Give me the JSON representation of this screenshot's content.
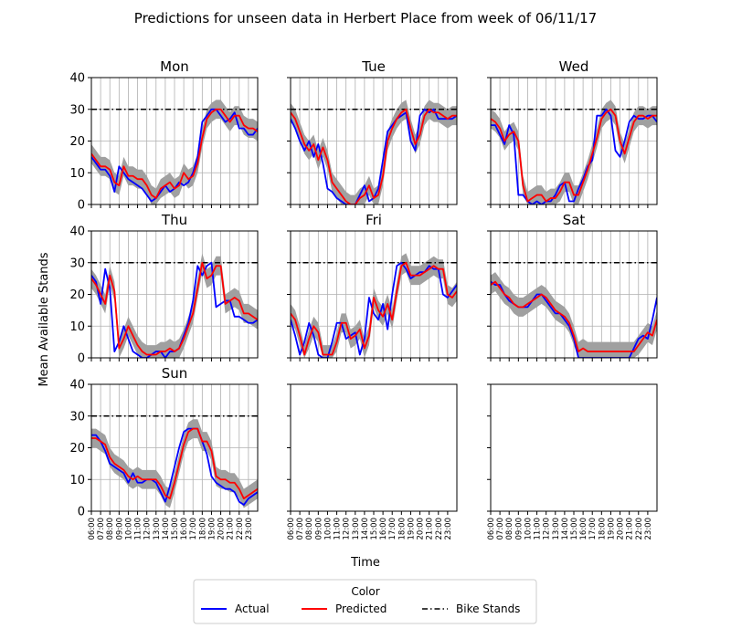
{
  "figure": {
    "title": "Predictions for unseen data in Herbert Place from week of 06/11/17",
    "xlabel": "Time",
    "ylabel": "Mean Available Stands"
  },
  "legend": {
    "title": "Color",
    "items": [
      {
        "label": "Actual",
        "color": "#0000ff",
        "style": "solid"
      },
      {
        "label": "Predicted",
        "color": "#ff0000",
        "style": "solid"
      },
      {
        "label": "Bike Stands",
        "color": "#000000",
        "style": "dashdot"
      }
    ]
  },
  "colors": {
    "band": "#a0a0a0",
    "grid": "#b0b0b0",
    "actual": "#0000ff",
    "predicted": "#ff0000",
    "stands": "#000000"
  },
  "chart_data": {
    "type": "line",
    "x_ticks": [
      "06:00",
      "07:00",
      "08:00",
      "09:00",
      "10:00",
      "11:00",
      "12:00",
      "13:00",
      "14:00",
      "15:00",
      "16:00",
      "17:00",
      "18:00",
      "19:00",
      "20:00",
      "21:00",
      "22:00",
      "23:00"
    ],
    "xlim": [
      6,
      24
    ],
    "ylim": [
      0,
      40
    ],
    "y_ticks": [
      0,
      10,
      20,
      30,
      40
    ],
    "bike_stands": 30,
    "band_halfwidth": 3,
    "grid": true,
    "legend_position": "bottom-center",
    "panels": [
      {
        "title": "Mon",
        "x": [
          6,
          6.5,
          7,
          7.5,
          8,
          8.5,
          9,
          9.5,
          10,
          10.5,
          11,
          11.5,
          12,
          12.5,
          13,
          13.5,
          14,
          14.5,
          15,
          15.5,
          16,
          16.5,
          17,
          17.5,
          18,
          18.5,
          19,
          19.5,
          20,
          20.5,
          21,
          21.5,
          22,
          22.5,
          23,
          23.5,
          24
        ],
        "actual": [
          15,
          13,
          11,
          11,
          9,
          4,
          12,
          10,
          8,
          7,
          6,
          5,
          3,
          1,
          2,
          4,
          6,
          4,
          5,
          7,
          6,
          7,
          10,
          15,
          26,
          28,
          30,
          30,
          28,
          26,
          27,
          29,
          24,
          24,
          22,
          22,
          24
        ],
        "predicted": [
          16,
          14,
          12,
          12,
          11,
          7,
          6,
          12,
          9,
          9,
          8,
          8,
          6,
          3,
          2,
          5,
          6,
          7,
          5,
          6,
          10,
          8,
          9,
          13,
          21,
          27,
          29,
          30,
          30,
          28,
          26,
          28,
          28,
          25,
          24,
          24,
          23
        ]
      },
      {
        "title": "Tue",
        "x": [
          6,
          6.5,
          7,
          7.5,
          8,
          8.5,
          9,
          9.5,
          10,
          10.5,
          11,
          11.5,
          12,
          12.5,
          13,
          13.5,
          14,
          14.5,
          15,
          15.5,
          16,
          16.5,
          17,
          17.5,
          18,
          18.5,
          19,
          19.5,
          20,
          20.5,
          21,
          21.5,
          22,
          22.5,
          23,
          23.5,
          24
        ],
        "actual": [
          27,
          24,
          20,
          17,
          20,
          15,
          19,
          13,
          5,
          4,
          2,
          1,
          0,
          0,
          0,
          3,
          6,
          1,
          2,
          5,
          14,
          23,
          25,
          27,
          28,
          29,
          20,
          17,
          28,
          30,
          29,
          30,
          27,
          27,
          27,
          27,
          28
        ],
        "predicted": [
          29,
          27,
          23,
          19,
          17,
          19,
          14,
          18,
          14,
          7,
          5,
          3,
          1,
          0,
          0,
          2,
          3,
          6,
          2,
          3,
          9,
          20,
          24,
          27,
          29,
          30,
          24,
          19,
          22,
          28,
          30,
          29,
          29,
          28,
          27,
          28,
          28
        ]
      },
      {
        "title": "Wed",
        "x": [
          6,
          6.5,
          7,
          7.5,
          8,
          8.5,
          9,
          9.5,
          10,
          10.5,
          11,
          11.5,
          12,
          12.5,
          13,
          13.5,
          14,
          14.5,
          15,
          15.5,
          16,
          16.5,
          17,
          17.5,
          18,
          18.5,
          19,
          19.5,
          20,
          20.5,
          21,
          21.5,
          22,
          22.5,
          23,
          23.5,
          24
        ],
        "actual": [
          25,
          25,
          22,
          19,
          25,
          22,
          3,
          3,
          1,
          0,
          1,
          0,
          1,
          1,
          3,
          6,
          7,
          1,
          1,
          5,
          8,
          12,
          14,
          28,
          28,
          30,
          28,
          17,
          15,
          20,
          26,
          28,
          27,
          27,
          28,
          28,
          26
        ],
        "predicted": [
          27,
          26,
          24,
          20,
          22,
          23,
          20,
          6,
          1,
          2,
          3,
          3,
          1,
          2,
          2,
          4,
          7,
          7,
          3,
          3,
          7,
          11,
          16,
          21,
          27,
          29,
          30,
          28,
          20,
          16,
          21,
          26,
          28,
          28,
          27,
          28,
          28
        ]
      },
      {
        "title": "Thu",
        "x": [
          6,
          6.5,
          7,
          7.5,
          8,
          8.5,
          9,
          9.5,
          10,
          10.5,
          11,
          11.5,
          12,
          12.5,
          13,
          13.5,
          14,
          14.5,
          15,
          15.5,
          16,
          16.5,
          17,
          17.5,
          18,
          18.5,
          19,
          19.5,
          20,
          20.5,
          21,
          21.5,
          22,
          22.5,
          23,
          23.5,
          24
        ],
        "actual": [
          26,
          24,
          17,
          28,
          22,
          2,
          5,
          10,
          6,
          2,
          1,
          0,
          0,
          1,
          2,
          2,
          0,
          2,
          2,
          3,
          7,
          11,
          18,
          29,
          26,
          29,
          30,
          16,
          17,
          18,
          18,
          13,
          13,
          12,
          11,
          11,
          12
        ],
        "predicted": [
          25,
          23,
          20,
          17,
          26,
          21,
          3,
          6,
          10,
          7,
          4,
          2,
          1,
          1,
          1,
          2,
          2,
          3,
          2,
          3,
          6,
          10,
          14,
          22,
          30,
          25,
          26,
          29,
          29,
          17,
          18,
          19,
          18,
          14,
          14,
          13,
          12
        ]
      },
      {
        "title": "Fri",
        "x": [
          6,
          6.5,
          7,
          7.5,
          8,
          8.5,
          9,
          9.5,
          10,
          10.5,
          11,
          11.5,
          12,
          12.5,
          13,
          13.5,
          14,
          14.5,
          15,
          15.5,
          16,
          16.5,
          17,
          17.5,
          18,
          18.5,
          19,
          19.5,
          20,
          20.5,
          21,
          21.5,
          22,
          22.5,
          23,
          23.5,
          24
        ],
        "actual": [
          12,
          7,
          1,
          5,
          11,
          7,
          1,
          0,
          0,
          5,
          11,
          11,
          6,
          7,
          8,
          1,
          6,
          19,
          14,
          12,
          17,
          9,
          20,
          29,
          30,
          28,
          25,
          26,
          27,
          27,
          29,
          28,
          28,
          20,
          19,
          21,
          23
        ],
        "predicted": [
          14,
          12,
          7,
          1,
          6,
          10,
          8,
          1,
          1,
          1,
          5,
          11,
          11,
          6,
          7,
          9,
          3,
          7,
          19,
          15,
          13,
          17,
          12,
          21,
          29,
          30,
          26,
          26,
          26,
          27,
          28,
          29,
          28,
          28,
          20,
          19,
          21
        ]
      },
      {
        "title": "Sat",
        "x": [
          6,
          6.5,
          7,
          7.5,
          8,
          8.5,
          9,
          9.5,
          10,
          10.5,
          11,
          11.5,
          12,
          12.5,
          13,
          13.5,
          14,
          14.5,
          15,
          15.5,
          16,
          16.5,
          17,
          17.5,
          18,
          18.5,
          19,
          19.5,
          20,
          20.5,
          21,
          21.5,
          22,
          22.5,
          23,
          23.5,
          24
        ],
        "actual": [
          24,
          23,
          23,
          20,
          18,
          17,
          16,
          16,
          16,
          18,
          20,
          20,
          18,
          16,
          14,
          14,
          12,
          10,
          6,
          0,
          0,
          0,
          0,
          0,
          0,
          0,
          0,
          0,
          0,
          0,
          0,
          3,
          6,
          7,
          6,
          12,
          19
        ],
        "predicted": [
          23,
          24,
          22,
          20,
          19,
          17,
          16,
          16,
          17,
          18,
          19,
          20,
          19,
          17,
          15,
          14,
          13,
          11,
          7,
          2,
          3,
          2,
          2,
          2,
          2,
          2,
          2,
          2,
          2,
          2,
          2,
          2,
          4,
          6,
          8,
          7,
          12
        ]
      },
      {
        "title": "Sun",
        "x": [
          6,
          6.5,
          7,
          7.5,
          8,
          8.5,
          9,
          9.5,
          10,
          10.5,
          11,
          11.5,
          12,
          12.5,
          13,
          13.5,
          14,
          14.5,
          15,
          15.5,
          16,
          16.5,
          17,
          17.5,
          18,
          18.5,
          19,
          19.5,
          20,
          20.5,
          21,
          21.5,
          22,
          22.5,
          23,
          23.5,
          24
        ],
        "actual": [
          24,
          24,
          22,
          19,
          15,
          14,
          13,
          12,
          9,
          12,
          9,
          9,
          10,
          10,
          9,
          6,
          3,
          8,
          14,
          20,
          25,
          26,
          26,
          26,
          22,
          18,
          11,
          9,
          8,
          7,
          7,
          6,
          3,
          2,
          4,
          5,
          6
        ],
        "predicted": [
          23,
          23,
          22,
          21,
          17,
          15,
          14,
          13,
          11,
          10,
          11,
          10,
          10,
          10,
          10,
          8,
          5,
          4,
          9,
          15,
          21,
          25,
          26,
          26,
          22,
          22,
          19,
          11,
          10,
          10,
          9,
          9,
          7,
          4,
          5,
          6,
          7
        ]
      },
      {
        "title": "",
        "x": [],
        "actual": [],
        "predicted": []
      },
      {
        "title": "",
        "x": [],
        "actual": [],
        "predicted": []
      }
    ]
  }
}
